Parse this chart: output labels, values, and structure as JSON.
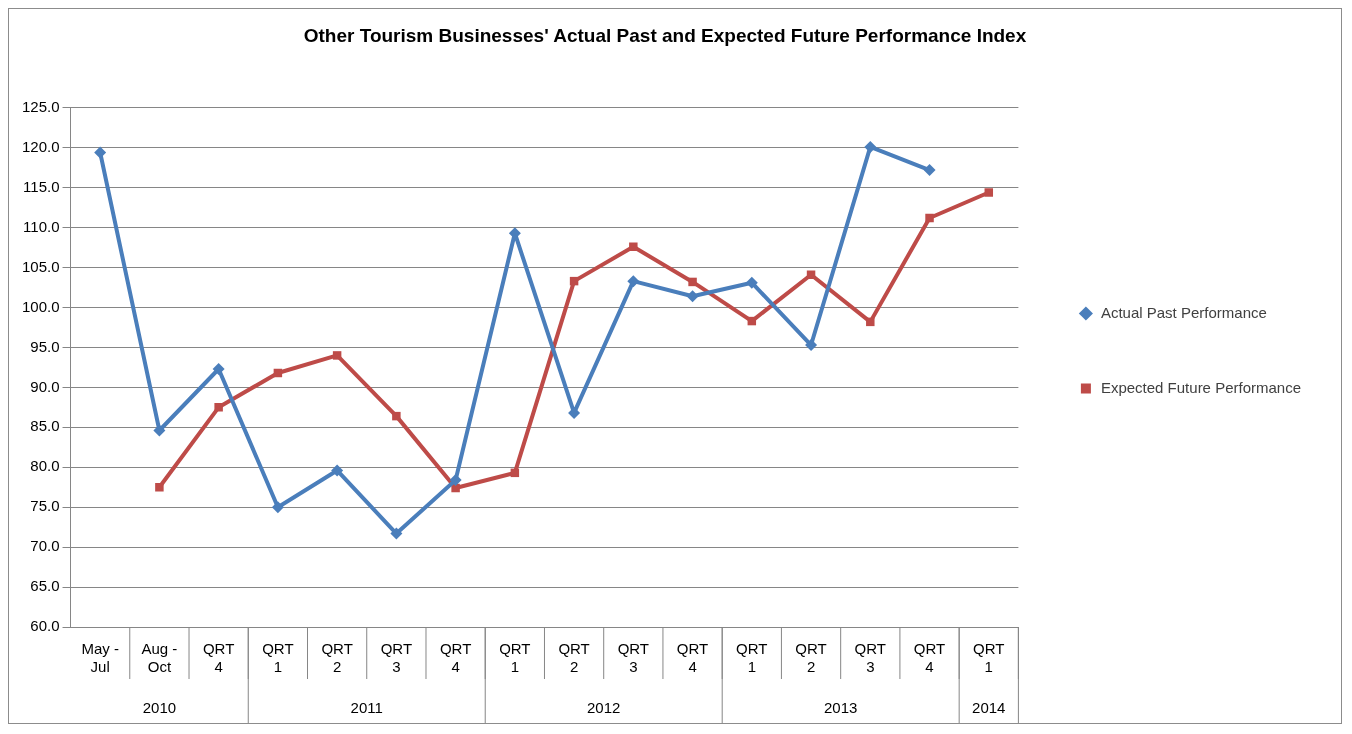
{
  "chart_data": {
    "type": "line",
    "title": "Other Tourism Businesses' Actual Past and Expected Future Performance Index",
    "categories": [
      "May - Jul",
      "Aug - Oct",
      "QRT 4",
      "QRT 1",
      "QRT 2",
      "QRT 3",
      "QRT 4",
      "QRT 1",
      "QRT 2",
      "QRT 3",
      "QRT 4",
      "QRT 1",
      "QRT 2",
      "QRT 3",
      "QRT 4",
      "QRT 1"
    ],
    "series": [
      {
        "name": "Actual Past Performance",
        "color": "#4a7ebb",
        "marker": "diamond",
        "values": [
          119.4,
          84.6,
          92.3,
          75.0,
          79.6,
          71.7,
          78.4,
          109.3,
          86.8,
          103.3,
          101.4,
          103.1,
          95.3,
          120.1,
          117.2,
          null
        ]
      },
      {
        "name": "Expected Future Performance",
        "color": "#be4b48",
        "marker": "square",
        "values": [
          null,
          77.5,
          87.5,
          91.8,
          94.0,
          86.4,
          77.4,
          79.3,
          103.3,
          107.6,
          103.2,
          98.3,
          104.1,
          98.2,
          111.2,
          114.4
        ]
      }
    ],
    "annotations": [
      "2010",
      "2011",
      "2012",
      "2013",
      "2014"
    ],
    "ylim": [
      60,
      125
    ],
    "yticks": [
      {
        "value": 60,
        "label": "60.0"
      },
      {
        "value": 65,
        "label": "65.0"
      },
      {
        "value": 70,
        "label": "70.0"
      },
      {
        "value": 75,
        "label": "75.0"
      },
      {
        "value": 80,
        "label": "80.0"
      },
      {
        "value": 85,
        "label": "85.0"
      },
      {
        "value": 90,
        "label": "90.0"
      },
      {
        "value": 95,
        "label": "95.0"
      },
      {
        "value": 100,
        "label": "100.0"
      },
      {
        "value": 105,
        "label": "105.0"
      },
      {
        "value": 110,
        "label": "110.0"
      },
      {
        "value": 115,
        "label": "115.0"
      },
      {
        "value": 120,
        "label": "120.0"
      },
      {
        "value": 125,
        "label": "125.0"
      }
    ],
    "grid": "y",
    "legend": "right"
  }
}
